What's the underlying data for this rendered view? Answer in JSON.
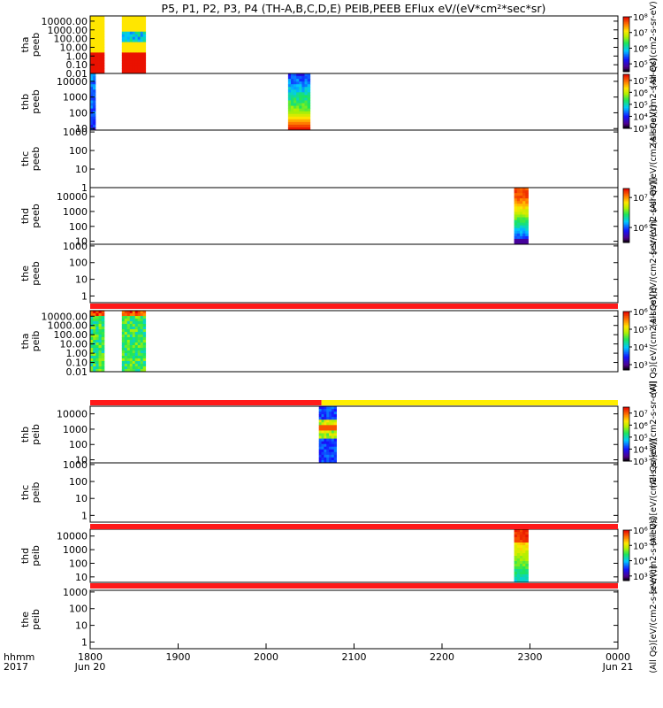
{
  "title": "P5, P1, P2, P3, P4 (TH-A,B,C,D,E) PEIB,PEEB EFlux eV/(eV*cm²*sec*sr)",
  "colors": {
    "frame": "#000000",
    "band_red": "#ff1a1a",
    "band_yellow": "#ffee00"
  },
  "chart_data": {
    "type": "heatmap",
    "x_axis": {
      "ticks": [
        "1800",
        "1900",
        "2000",
        "2100",
        "2200",
        "2300",
        "0000"
      ],
      "row_label_1": "hhmm",
      "row_label_2": "2017",
      "date_start": "Jun 20",
      "date_end": "Jun 21",
      "range_hours": [
        18,
        24
      ]
    },
    "panels": [
      {
        "label1": "tha",
        "label2": "peeb",
        "yticks": [
          "10000.00",
          "1000.00",
          "100.00",
          "10.00",
          "1.00",
          "0.10",
          "0.01"
        ],
        "log_range": [
          -2,
          4.6
        ],
        "cb_ticks": [
          "10⁸",
          "10⁷",
          "10⁶",
          "10⁵"
        ],
        "cb_range": [
          4.5,
          8
        ],
        "cb_label": "(All Qs)(cm2-s-sr-eV)",
        "blocks": [
          {
            "t0": 18.0,
            "t1": 18.16,
            "emin": -2,
            "emax": 4.6,
            "kind": "yellow"
          },
          {
            "t0": 18.36,
            "t1": 18.63,
            "emin": -2,
            "emax": 4.6,
            "kind": "yellow_core"
          }
        ]
      },
      {
        "label1": "thb",
        "label2": "peeb",
        "yticks": [
          "10000",
          "1000",
          "100",
          "10"
        ],
        "log_range": [
          0.9,
          4.5
        ],
        "cb_ticks": [
          "10⁷",
          "10⁶",
          "10⁵",
          "10⁴",
          "10³"
        ],
        "cb_range": [
          3,
          7.5
        ],
        "cb_label": "(All Qs)(cm2-s-sr-eV)",
        "blocks": [
          {
            "t0": 18.0,
            "t1": 18.06,
            "emin": 0.9,
            "emax": 4.5,
            "kind": "spectrum_blue"
          },
          {
            "t0": 20.25,
            "t1": 20.5,
            "emin": 0.9,
            "emax": 4.5,
            "kind": "spectrum_hot_low"
          }
        ]
      },
      {
        "label1": "thc",
        "label2": "peeb",
        "yticks": [
          "1000",
          "100",
          "10",
          "1"
        ],
        "log_range": [
          0,
          3.1
        ],
        "cb_ticks": [],
        "cb_label": "(All Qs)[eV/(cm2-s-sr-eV)]",
        "blocks": []
      },
      {
        "label1": "thd",
        "label2": "peeb",
        "yticks": [
          "10000",
          "1000",
          "100",
          "10"
        ],
        "log_range": [
          0.8,
          4.6
        ],
        "cb_ticks": [
          "10⁷",
          "10⁶"
        ],
        "cb_range": [
          5.5,
          7.3
        ],
        "cb_label": "[eV/(cm2-s-sr-eV)]",
        "blocks": [
          {
            "t0": 22.82,
            "t1": 22.98,
            "emin": 0.8,
            "emax": 4.6,
            "kind": "spectrum_mid"
          }
        ]
      },
      {
        "label1": "the",
        "label2": "peeb",
        "yticks": [
          "1000",
          "100",
          "10",
          "1"
        ],
        "log_range": [
          -0.4,
          3.1
        ],
        "cb_ticks": [],
        "cb_label": "(All Qs)[eV/(cm2-s-sr-eV)]",
        "blocks": []
      },
      {
        "label1": "tha",
        "label2": "peib",
        "yticks": [
          "10000.00",
          "1000.00",
          "100.00",
          "10.00",
          "1.00",
          "0.10",
          "0.01"
        ],
        "log_range": [
          -2,
          4.6
        ],
        "cb_ticks": [
          "10⁶",
          "10⁵",
          "10⁴",
          "10³"
        ],
        "cb_range": [
          2.7,
          6
        ],
        "cb_label": "(All Qs)[eV/(cm2-s-sr-eV)]",
        "blocks": [
          {
            "t0": 18.0,
            "t1": 18.16,
            "emin": -2,
            "emax": 4.6,
            "kind": "ion_green"
          },
          {
            "t0": 18.36,
            "t1": 18.63,
            "emin": -2,
            "emax": 4.6,
            "kind": "ion_green"
          }
        ]
      },
      {
        "label1": "thb",
        "label2": "peib",
        "yticks": [
          "10000",
          "1000",
          "100",
          "10"
        ],
        "log_range": [
          0.8,
          4.5
        ],
        "cb_ticks": [
          "10⁷",
          "10⁶",
          "10⁵",
          "10⁴",
          "10³"
        ],
        "cb_range": [
          3,
          7.5
        ],
        "cb_label": "(All Qs)[eV/(cm2-s-sr-eV)]",
        "blocks": [
          {
            "t0": 20.6,
            "t1": 20.8,
            "emin": 0.8,
            "emax": 4.5,
            "kind": "ion_blue_hot"
          }
        ]
      },
      {
        "label1": "thc",
        "label2": "peib",
        "yticks": [
          "1000",
          "100",
          "10",
          "1"
        ],
        "log_range": [
          -0.4,
          3.1
        ],
        "cb_ticks": [],
        "cb_label": "(All Qs)[eV/(cm2-s-sr-eV)]",
        "blocks": []
      },
      {
        "label1": "thd",
        "label2": "peib",
        "yticks": [
          "10000",
          "1000",
          "100",
          "10"
        ],
        "log_range": [
          0.6,
          4.5
        ],
        "cb_ticks": [
          "10⁶",
          "10⁵",
          "10⁴",
          "10³"
        ],
        "cb_range": [
          2.7,
          6
        ],
        "cb_label": "[eV/(cm2-s-sr-eV)]",
        "blocks": [
          {
            "t0": 22.82,
            "t1": 22.98,
            "emin": 0.6,
            "emax": 4.5,
            "kind": "ion_red_top"
          }
        ]
      },
      {
        "label1": "the",
        "label2": "peib",
        "yticks": [
          "1000",
          "100",
          "10",
          "1"
        ],
        "log_range": [
          -0.4,
          3.1
        ],
        "cb_ticks": [],
        "cb_label": "(All Qs)[eV/(cm2-s-sr-eV)]",
        "blocks": []
      }
    ],
    "status_bars": [
      {
        "after_panel": 4,
        "segments": [
          {
            "t0": 18.0,
            "t1": 24.0,
            "color": "red"
          }
        ]
      },
      {
        "after_panel": 5,
        "segments": [
          {
            "t0": 18.0,
            "t1": 20.63,
            "color": "red"
          },
          {
            "t0": 20.63,
            "t1": 24.0,
            "color": "yellow"
          }
        ]
      },
      {
        "after_panel": 7,
        "segments": [
          {
            "t0": 18.0,
            "t1": 24.0,
            "color": "red"
          }
        ]
      },
      {
        "after_panel": 8,
        "segments": [
          {
            "t0": 18.0,
            "t1": 24.0,
            "color": "red"
          }
        ]
      }
    ]
  }
}
